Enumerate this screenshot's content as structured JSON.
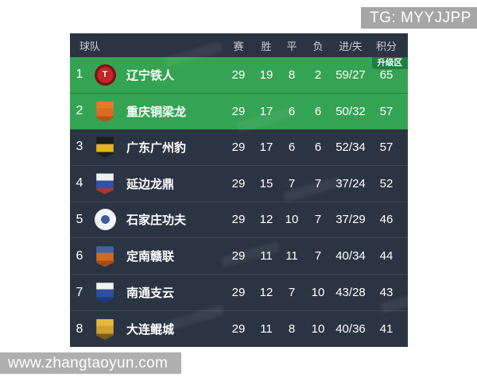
{
  "overlays": {
    "tg_banner": "TG: MYYJJPP",
    "site_watermark": "www.zhangtaoyun.com"
  },
  "table": {
    "colors": {
      "card_bg": "#2b3442",
      "promotion_row_bg": "#34a353",
      "promotion_badge_bg": "#1e7f3e",
      "header_text": "#c9ced6",
      "row_text": "#ffffff"
    },
    "header": {
      "team": "球队",
      "played": "赛",
      "win": "胜",
      "draw": "平",
      "loss": "负",
      "goals": "进/失",
      "points": "积分"
    },
    "promotion_badge": "升级区",
    "rows": [
      {
        "rank": "1",
        "team": "辽宁铁人",
        "played": "29",
        "win": "19",
        "draw": "8",
        "loss": "2",
        "goals": "59/27",
        "points": "65",
        "zone": "promotion",
        "show_badge": true,
        "logo": {
          "name": "liaoning-tieren-crest",
          "shape": "circle",
          "inner": "#c22828",
          "outer": "#7d1116",
          "glyph": "T",
          "glyph_color": "#ffffff"
        }
      },
      {
        "rank": "2",
        "team": "重庆铜梁龙",
        "played": "29",
        "win": "17",
        "draw": "6",
        "loss": "6",
        "goals": "50/32",
        "points": "57",
        "zone": "promotion",
        "show_badge": false,
        "logo": {
          "name": "chongqing-tonglianglong-crest",
          "shape": "shield",
          "top": "#e07b28",
          "mid": "#d96a1f",
          "bottom": "#b84f17",
          "glyph": "",
          "glyph_color": "#f6d27a"
        }
      },
      {
        "rank": "3",
        "team": "广东广州豹",
        "played": "29",
        "win": "17",
        "draw": "6",
        "loss": "6",
        "goals": "52/34",
        "points": "57",
        "zone": "normal",
        "show_badge": false,
        "logo": {
          "name": "guangdong-guangzhoubao-crest",
          "shape": "shield",
          "top": "#1d1d1d",
          "mid": "#e3b421",
          "bottom": "#1d1d1d",
          "glyph": "",
          "glyph_color": "#1d1d1d"
        }
      },
      {
        "rank": "4",
        "team": "延边龙鼎",
        "played": "29",
        "win": "15",
        "draw": "7",
        "loss": "7",
        "goals": "37/24",
        "points": "52",
        "zone": "normal",
        "show_badge": false,
        "logo": {
          "name": "yanbian-longding-crest",
          "shape": "shield",
          "top": "#eef0f2",
          "mid": "#30549e",
          "bottom": "#c62a33",
          "glyph": "",
          "glyph_color": "#ffffff"
        }
      },
      {
        "rank": "5",
        "team": "石家庄功夫",
        "played": "29",
        "win": "12",
        "draw": "10",
        "loss": "7",
        "goals": "37/29",
        "points": "46",
        "zone": "normal",
        "show_badge": false,
        "logo": {
          "name": "shijiazhuang-gongfu-crest",
          "shape": "circle",
          "inner": "#3c5c9d",
          "outer": "#f2f5f8",
          "ring": "#b9c4d2",
          "glyph": "",
          "glyph_color": "#3c5c9d"
        }
      },
      {
        "rank": "6",
        "team": "定南赣联",
        "played": "29",
        "win": "11",
        "draw": "11",
        "loss": "7",
        "goals": "40/34",
        "points": "44",
        "zone": "normal",
        "show_badge": false,
        "logo": {
          "name": "dingnan-ganlian-crest",
          "shape": "shield",
          "top": "#3c63a8",
          "mid": "#cf6a1f",
          "bottom": "#a34e12",
          "glyph": "",
          "glyph_color": "#ffffff"
        }
      },
      {
        "rank": "7",
        "team": "南通支云",
        "played": "29",
        "win": "12",
        "draw": "7",
        "loss": "10",
        "goals": "43/28",
        "points": "43",
        "zone": "normal",
        "show_badge": false,
        "logo": {
          "name": "nantong-zhiyun-crest",
          "shape": "shield",
          "top": "#f0f2f4",
          "mid": "#2d4f9e",
          "bottom": "#1d3a7c",
          "glyph": "",
          "glyph_color": "#ffffff"
        }
      },
      {
        "rank": "8",
        "team": "大连鲲城",
        "played": "29",
        "win": "11",
        "draw": "8",
        "loss": "10",
        "goals": "40/36",
        "points": "41",
        "zone": "normal",
        "show_badge": false,
        "logo": {
          "name": "dalian-kuncheng-crest",
          "shape": "shield",
          "top": "#e5b93c",
          "mid": "#cfa02e",
          "bottom": "#7a5a16",
          "glyph": "",
          "glyph_color": "#7a4a12"
        }
      }
    ]
  }
}
